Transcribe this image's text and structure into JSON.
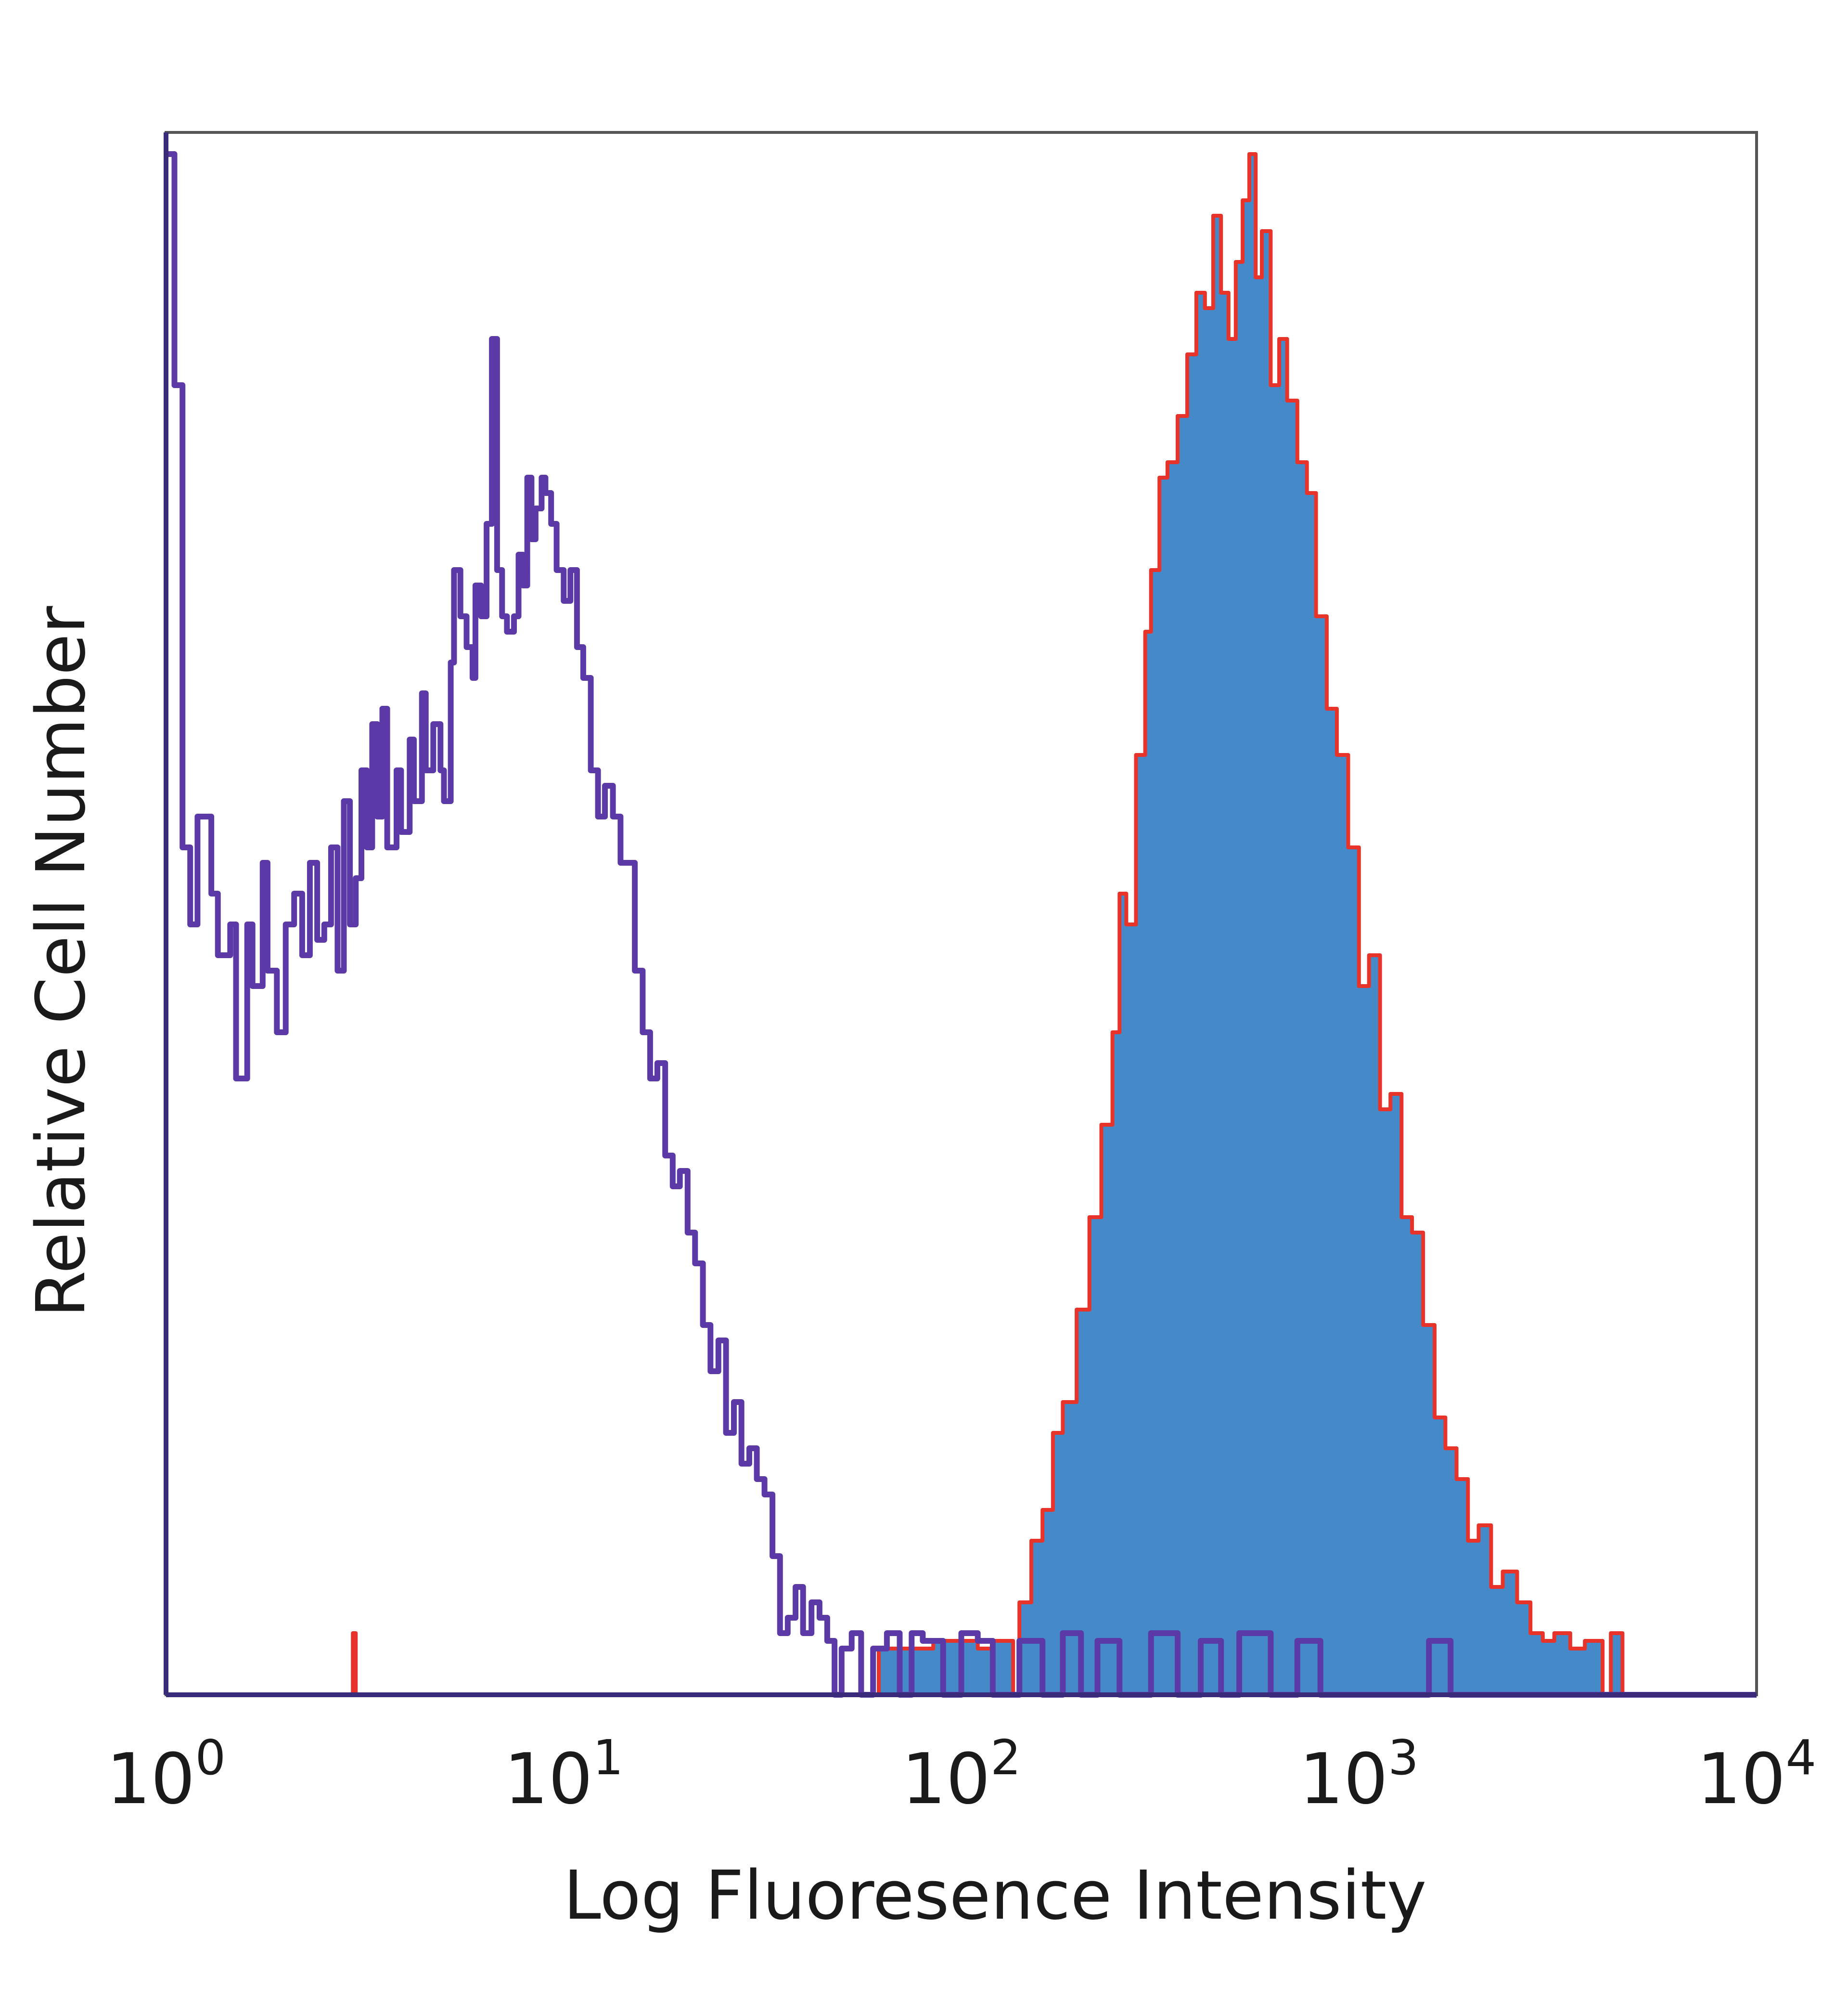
{
  "chart_data": {
    "type": "histogram",
    "x_scale": "log",
    "xlim": [
      1,
      10000
    ],
    "ylim": [
      0,
      1
    ],
    "grid": false,
    "legend": "none",
    "xlabel": "Log Fluoresence Intensity",
    "ylabel": "Relative Cell Number",
    "x_ticks": [
      {
        "base": "10",
        "exp": "0",
        "value": 1
      },
      {
        "base": "10",
        "exp": "1",
        "value": 10
      },
      {
        "base": "10",
        "exp": "2",
        "value": 100
      },
      {
        "base": "10",
        "exp": "3",
        "value": 1000
      },
      {
        "base": "10",
        "exp": "4",
        "value": 10000
      }
    ],
    "colors": {
      "axes": "#3a2a7a",
      "isotype_line": "#5b3aa8",
      "stained_fill": "#4589c9",
      "stained_outline": "#e8332a"
    },
    "series": [
      {
        "role": "isotype-control",
        "style": "line",
        "points": [
          [
            1.0,
            1.0
          ],
          [
            1.05,
            0.85
          ],
          [
            1.1,
            0.55
          ],
          [
            1.15,
            0.5
          ],
          [
            1.2,
            0.57
          ],
          [
            1.3,
            0.52
          ],
          [
            1.35,
            0.48
          ],
          [
            1.45,
            0.5
          ],
          [
            1.5,
            0.4
          ],
          [
            1.6,
            0.5
          ],
          [
            1.65,
            0.46
          ],
          [
            1.75,
            0.54
          ],
          [
            1.8,
            0.47
          ],
          [
            1.9,
            0.43
          ],
          [
            2.0,
            0.5
          ],
          [
            2.1,
            0.52
          ],
          [
            2.2,
            0.48
          ],
          [
            2.3,
            0.54
          ],
          [
            2.4,
            0.49
          ],
          [
            2.5,
            0.5
          ],
          [
            2.6,
            0.55
          ],
          [
            2.7,
            0.47
          ],
          [
            2.8,
            0.58
          ],
          [
            2.9,
            0.5
          ],
          [
            3.0,
            0.53
          ],
          [
            3.1,
            0.6
          ],
          [
            3.2,
            0.55
          ],
          [
            3.3,
            0.63
          ],
          [
            3.4,
            0.57
          ],
          [
            3.5,
            0.64
          ],
          [
            3.6,
            0.55
          ],
          [
            3.8,
            0.6
          ],
          [
            3.9,
            0.56
          ],
          [
            4.1,
            0.62
          ],
          [
            4.2,
            0.58
          ],
          [
            4.4,
            0.65
          ],
          [
            4.5,
            0.6
          ],
          [
            4.7,
            0.63
          ],
          [
            4.9,
            0.6
          ],
          [
            5.0,
            0.58
          ],
          [
            5.2,
            0.67
          ],
          [
            5.3,
            0.73
          ],
          [
            5.5,
            0.7
          ],
          [
            5.7,
            0.68
          ],
          [
            5.9,
            0.66
          ],
          [
            6.0,
            0.72
          ],
          [
            6.2,
            0.7
          ],
          [
            6.4,
            0.76
          ],
          [
            6.6,
            0.88
          ],
          [
            6.8,
            0.73
          ],
          [
            7.0,
            0.7
          ],
          [
            7.2,
            0.69
          ],
          [
            7.5,
            0.7
          ],
          [
            7.7,
            0.74
          ],
          [
            7.9,
            0.72
          ],
          [
            8.1,
            0.79
          ],
          [
            8.3,
            0.75
          ],
          [
            8.5,
            0.77
          ],
          [
            8.8,
            0.79
          ],
          [
            9.0,
            0.78
          ],
          [
            9.3,
            0.76
          ],
          [
            9.6,
            0.73
          ],
          [
            10.0,
            0.71
          ],
          [
            10.4,
            0.73
          ],
          [
            10.8,
            0.68
          ],
          [
            11.2,
            0.66
          ],
          [
            11.7,
            0.6
          ],
          [
            12.2,
            0.57
          ],
          [
            12.7,
            0.59
          ],
          [
            13.3,
            0.57
          ],
          [
            13.9,
            0.54
          ],
          [
            14.5,
            0.54
          ],
          [
            15.1,
            0.47
          ],
          [
            15.8,
            0.43
          ],
          [
            16.5,
            0.4
          ],
          [
            17.2,
            0.41
          ],
          [
            18.0,
            0.35
          ],
          [
            18.8,
            0.33
          ],
          [
            19.6,
            0.34
          ],
          [
            20.5,
            0.3
          ],
          [
            21.4,
            0.28
          ],
          [
            22.4,
            0.24
          ],
          [
            23.4,
            0.21
          ],
          [
            24.5,
            0.23
          ],
          [
            25.6,
            0.17
          ],
          [
            26.8,
            0.19
          ],
          [
            28.0,
            0.15
          ],
          [
            29.3,
            0.16
          ],
          [
            30.6,
            0.14
          ],
          [
            32.0,
            0.13
          ],
          [
            33.5,
            0.09
          ],
          [
            35.0,
            0.04
          ],
          [
            36.6,
            0.05
          ],
          [
            38.3,
            0.07
          ],
          [
            40.0,
            0.04
          ],
          [
            42.0,
            0.06
          ],
          [
            44.0,
            0.05
          ],
          [
            46.0,
            0.035
          ],
          [
            48.0,
            0.0
          ],
          [
            50.0,
            0.03
          ],
          [
            53.0,
            0.04
          ],
          [
            56.0,
            0.0
          ],
          [
            60.0,
            0.03
          ],
          [
            65.0,
            0.04
          ],
          [
            70.0,
            0.0
          ],
          [
            75.0,
            0.04
          ],
          [
            80.0,
            0.035
          ],
          [
            90.0,
            0.0
          ],
          [
            100.0,
            0.04
          ],
          [
            110.0,
            0.035
          ],
          [
            120.0,
            0.0
          ],
          [
            140.0,
            0.035
          ],
          [
            160.0,
            0.0
          ],
          [
            180.0,
            0.04
          ],
          [
            200.0,
            0.0
          ],
          [
            220.0,
            0.035
          ],
          [
            250.0,
            0.0
          ],
          [
            300.0,
            0.04
          ],
          [
            350.0,
            0.0
          ],
          [
            400.0,
            0.035
          ],
          [
            450.0,
            0.0
          ],
          [
            500.0,
            0.04
          ],
          [
            600.0,
            0.0
          ],
          [
            700.0,
            0.035
          ],
          [
            800.0,
            0.0
          ],
          [
            1000.0,
            0.0
          ],
          [
            1500.0,
            0.035
          ],
          [
            1700.0,
            0.0
          ],
          [
            3000.0,
            0.0
          ],
          [
            10000.0,
            0.0
          ]
        ]
      },
      {
        "role": "stained",
        "style": "filled",
        "points": [
          [
            1.0,
            0.0
          ],
          [
            2.9,
            0.0
          ],
          [
            2.95,
            0.04
          ],
          [
            3.0,
            0.0
          ],
          [
            60.0,
            0.0
          ],
          [
            62.0,
            0.03
          ],
          [
            70.0,
            0.03
          ],
          [
            85.0,
            0.035
          ],
          [
            100.0,
            0.035
          ],
          [
            110.0,
            0.03
          ],
          [
            120.0,
            0.035
          ],
          [
            135.0,
            0.0
          ],
          [
            140.0,
            0.06
          ],
          [
            150.0,
            0.1
          ],
          [
            160.0,
            0.12
          ],
          [
            170.0,
            0.17
          ],
          [
            180.0,
            0.19
          ],
          [
            195.0,
            0.25
          ],
          [
            210.0,
            0.31
          ],
          [
            225.0,
            0.37
          ],
          [
            240.0,
            0.43
          ],
          [
            250.0,
            0.52
          ],
          [
            260.0,
            0.5
          ],
          [
            275.0,
            0.61
          ],
          [
            290.0,
            0.69
          ],
          [
            300.0,
            0.73
          ],
          [
            315.0,
            0.79
          ],
          [
            330.0,
            0.8
          ],
          [
            350.0,
            0.83
          ],
          [
            370.0,
            0.87
          ],
          [
            390.0,
            0.91
          ],
          [
            410.0,
            0.9
          ],
          [
            430.0,
            0.96
          ],
          [
            450.0,
            0.91
          ],
          [
            470.0,
            0.88
          ],
          [
            490.0,
            0.93
          ],
          [
            510.0,
            0.97
          ],
          [
            530.0,
            1.0
          ],
          [
            550.0,
            0.92
          ],
          [
            570.0,
            0.95
          ],
          [
            600.0,
            0.85
          ],
          [
            630.0,
            0.88
          ],
          [
            660.0,
            0.84
          ],
          [
            700.0,
            0.8
          ],
          [
            740.0,
            0.78
          ],
          [
            780.0,
            0.7
          ],
          [
            830.0,
            0.64
          ],
          [
            880.0,
            0.61
          ],
          [
            940.0,
            0.55
          ],
          [
            1000.0,
            0.46
          ],
          [
            1060.0,
            0.48
          ],
          [
            1130.0,
            0.38
          ],
          [
            1200.0,
            0.39
          ],
          [
            1280.0,
            0.31
          ],
          [
            1360.0,
            0.3
          ],
          [
            1450.0,
            0.24
          ],
          [
            1550.0,
            0.18
          ],
          [
            1650.0,
            0.16
          ],
          [
            1760.0,
            0.14
          ],
          [
            1880.0,
            0.1
          ],
          [
            2000.0,
            0.11
          ],
          [
            2150.0,
            0.07
          ],
          [
            2300.0,
            0.08
          ],
          [
            2500.0,
            0.06
          ],
          [
            2700.0,
            0.04
          ],
          [
            2900.0,
            0.035
          ],
          [
            3100.0,
            0.04
          ],
          [
            3400.0,
            0.03
          ],
          [
            3700.0,
            0.035
          ],
          [
            4100.0,
            0.0
          ],
          [
            4300.0,
            0.04
          ],
          [
            4600.0,
            0.0
          ],
          [
            10000.0,
            0.0
          ]
        ]
      }
    ]
  }
}
